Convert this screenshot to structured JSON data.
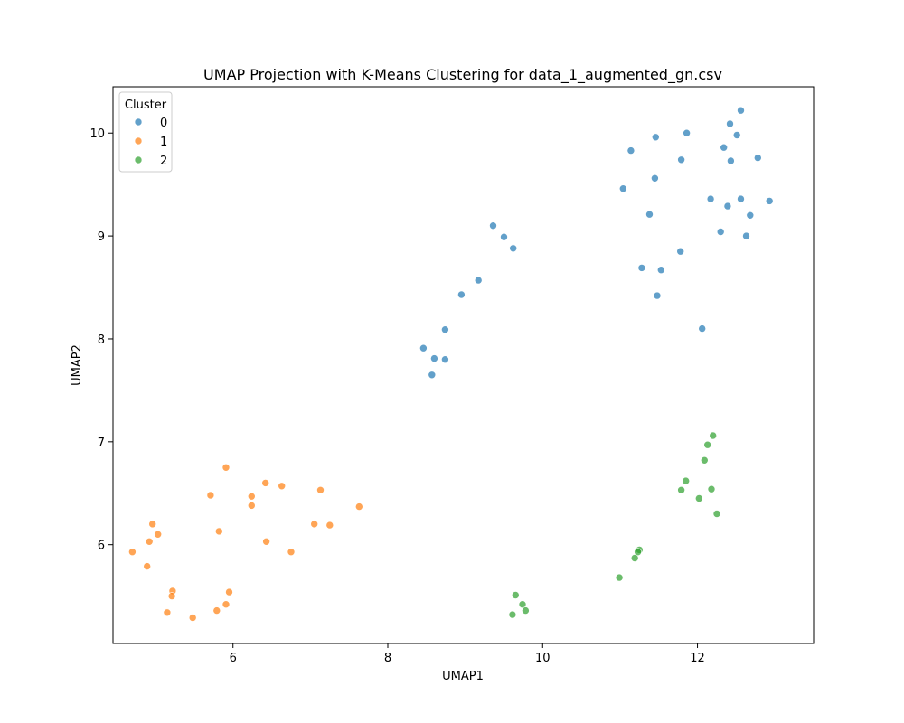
{
  "chart_data": {
    "type": "scatter",
    "title": "UMAP Projection with K-Means Clustering for data_1_augmented_gn.csv",
    "xlabel": "UMAP1",
    "ylabel": "UMAP2",
    "xlim": [
      4.45,
      13.5
    ],
    "ylim": [
      5.04,
      10.45
    ],
    "xticks": [
      6,
      8,
      10,
      12
    ],
    "yticks": [
      6,
      7,
      8,
      9,
      10
    ],
    "grid": false,
    "legend": {
      "title": "Cluster",
      "placement": "top-left"
    },
    "series": [
      {
        "name": "0",
        "color": "#1f77b4",
        "points": [
          [
            12.56,
            10.22
          ],
          [
            12.42,
            10.09
          ],
          [
            12.51,
            9.98
          ],
          [
            11.86,
            10.0
          ],
          [
            11.46,
            9.96
          ],
          [
            11.14,
            9.83
          ],
          [
            12.34,
            9.86
          ],
          [
            12.78,
            9.76
          ],
          [
            11.79,
            9.74
          ],
          [
            12.43,
            9.73
          ],
          [
            11.45,
            9.56
          ],
          [
            11.04,
            9.46
          ],
          [
            12.17,
            9.36
          ],
          [
            12.56,
            9.36
          ],
          [
            12.39,
            9.29
          ],
          [
            12.93,
            9.34
          ],
          [
            11.38,
            9.21
          ],
          [
            12.68,
            9.2
          ],
          [
            9.36,
            9.1
          ],
          [
            9.5,
            8.99
          ],
          [
            9.62,
            8.88
          ],
          [
            12.3,
            9.04
          ],
          [
            12.63,
            9.0
          ],
          [
            11.78,
            8.85
          ],
          [
            11.28,
            8.69
          ],
          [
            11.53,
            8.67
          ],
          [
            11.48,
            8.42
          ],
          [
            9.17,
            8.57
          ],
          [
            8.95,
            8.43
          ],
          [
            8.74,
            8.09
          ],
          [
            12.06,
            8.1
          ],
          [
            8.46,
            7.91
          ],
          [
            8.6,
            7.81
          ],
          [
            8.74,
            7.8
          ],
          [
            8.57,
            7.65
          ]
        ]
      },
      {
        "name": "1",
        "color": "#ff7f0e",
        "points": [
          [
            5.91,
            6.75
          ],
          [
            6.42,
            6.6
          ],
          [
            6.63,
            6.57
          ],
          [
            7.13,
            6.53
          ],
          [
            5.71,
            6.48
          ],
          [
            6.24,
            6.47
          ],
          [
            6.24,
            6.38
          ],
          [
            7.63,
            6.37
          ],
          [
            4.96,
            6.2
          ],
          [
            7.05,
            6.2
          ],
          [
            7.25,
            6.19
          ],
          [
            5.82,
            6.13
          ],
          [
            5.03,
            6.1
          ],
          [
            4.92,
            6.03
          ],
          [
            6.43,
            6.03
          ],
          [
            4.7,
            5.93
          ],
          [
            6.75,
            5.93
          ],
          [
            4.89,
            5.79
          ],
          [
            5.22,
            5.55
          ],
          [
            5.95,
            5.54
          ],
          [
            5.21,
            5.5
          ],
          [
            5.91,
            5.42
          ],
          [
            5.79,
            5.36
          ],
          [
            5.15,
            5.34
          ],
          [
            5.48,
            5.29
          ]
        ]
      },
      {
        "name": "2",
        "color": "#2ca02c",
        "points": [
          [
            12.2,
            7.06
          ],
          [
            12.13,
            6.97
          ],
          [
            12.09,
            6.82
          ],
          [
            11.85,
            6.62
          ],
          [
            11.79,
            6.53
          ],
          [
            12.18,
            6.54
          ],
          [
            12.02,
            6.45
          ],
          [
            12.25,
            6.3
          ],
          [
            11.25,
            5.95
          ],
          [
            11.23,
            5.93
          ],
          [
            11.19,
            5.87
          ],
          [
            10.99,
            5.68
          ],
          [
            9.65,
            5.51
          ],
          [
            9.74,
            5.42
          ],
          [
            9.78,
            5.36
          ],
          [
            9.61,
            5.32
          ]
        ]
      }
    ]
  }
}
